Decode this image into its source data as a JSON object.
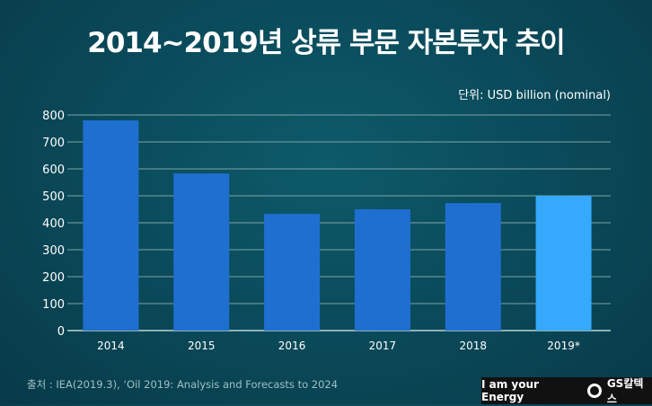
{
  "chart_data": {
    "type": "bar",
    "title": "2014~2019년 상류 부문 자본투자 추이",
    "unit_label": "단위: USD billion (nominal)",
    "categories": [
      "2014",
      "2015",
      "2016",
      "2017",
      "2018",
      "2019*"
    ],
    "values": [
      780,
      583,
      433,
      450,
      473,
      500
    ],
    "highlight_index": 5,
    "ylim": [
      0,
      800
    ],
    "yticks": [
      0,
      100,
      200,
      300,
      400,
      500,
      600,
      700,
      800
    ],
    "grid": true,
    "colors": {
      "bar": "#1f6fd1",
      "highlight": "#35a9fb"
    }
  },
  "footer": {
    "source": "출처 : IEA(2019.3),   ‘Oil 2019: Analysis and Forecasts to 2024",
    "tagline": "I am your Energy",
    "brand": "GS칼텍스"
  }
}
